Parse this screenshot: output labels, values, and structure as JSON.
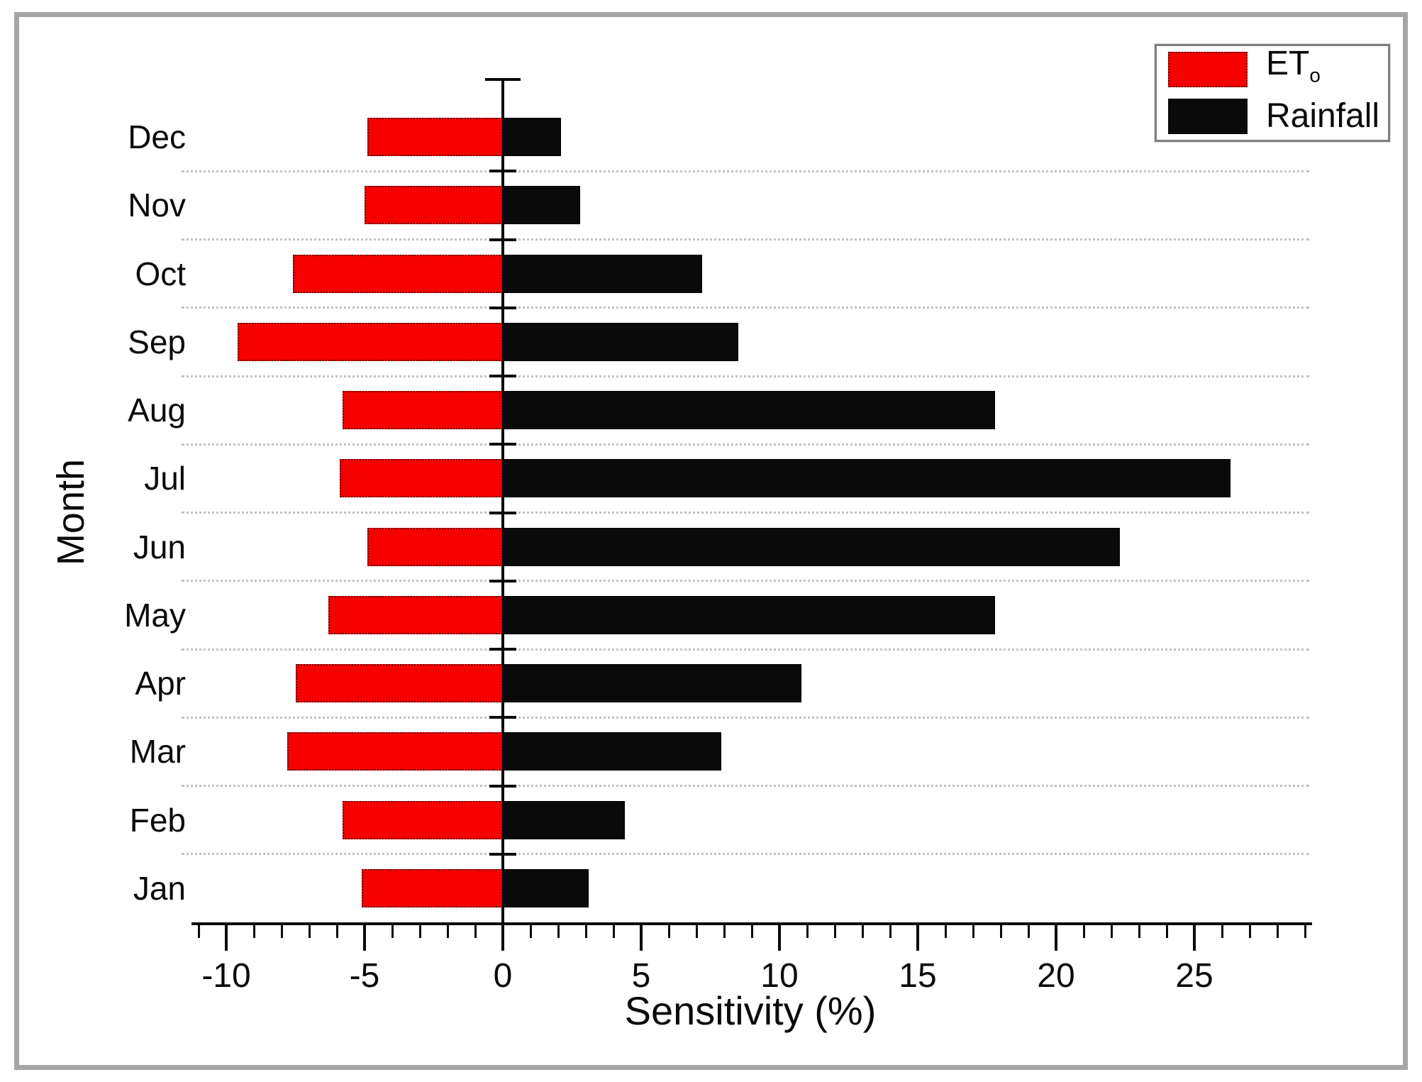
{
  "figure": {
    "y_axis_title": "Month",
    "x_axis_title": "Sensitivity (%)",
    "legend": {
      "position": "top-right",
      "entries": [
        {
          "label": "ET",
          "subscript": "o",
          "color": "#f60000"
        },
        {
          "label": "Rainfall",
          "subscript": "",
          "color": "#0a0a0a"
        }
      ]
    }
  },
  "chart_data": {
    "type": "bar",
    "orientation": "horizontal",
    "title": "",
    "xlabel": "Sensitivity (%)",
    "ylabel": "Month",
    "categories": [
      "Dec",
      "Nov",
      "Oct",
      "Sep",
      "Aug",
      "Jul",
      "Jun",
      "May",
      "Apr",
      "Mar",
      "Feb",
      "Jan"
    ],
    "categories_order": "top_to_bottom",
    "series": [
      {
        "name": "ET0",
        "color": "#f60000",
        "values": [
          -4.9,
          -5.0,
          -7.6,
          -9.6,
          -5.8,
          -5.9,
          -4.9,
          -6.3,
          -7.5,
          -7.8,
          -5.8,
          -5.1
        ]
      },
      {
        "name": "Rainfall",
        "color": "#0a0a0a",
        "values": [
          2.1,
          2.8,
          7.2,
          8.5,
          17.8,
          26.3,
          22.3,
          17.8,
          10.8,
          7.9,
          4.4,
          3.1
        ]
      }
    ],
    "x_axis": {
      "min": -11,
      "max": 29,
      "major_ticks": [
        -10,
        -5,
        0,
        5,
        10,
        15,
        20,
        25
      ],
      "minor_tick_step": 1
    },
    "grid": {
      "horizontal_dotted_between_rows": true
    },
    "legend_position": "top-right"
  }
}
